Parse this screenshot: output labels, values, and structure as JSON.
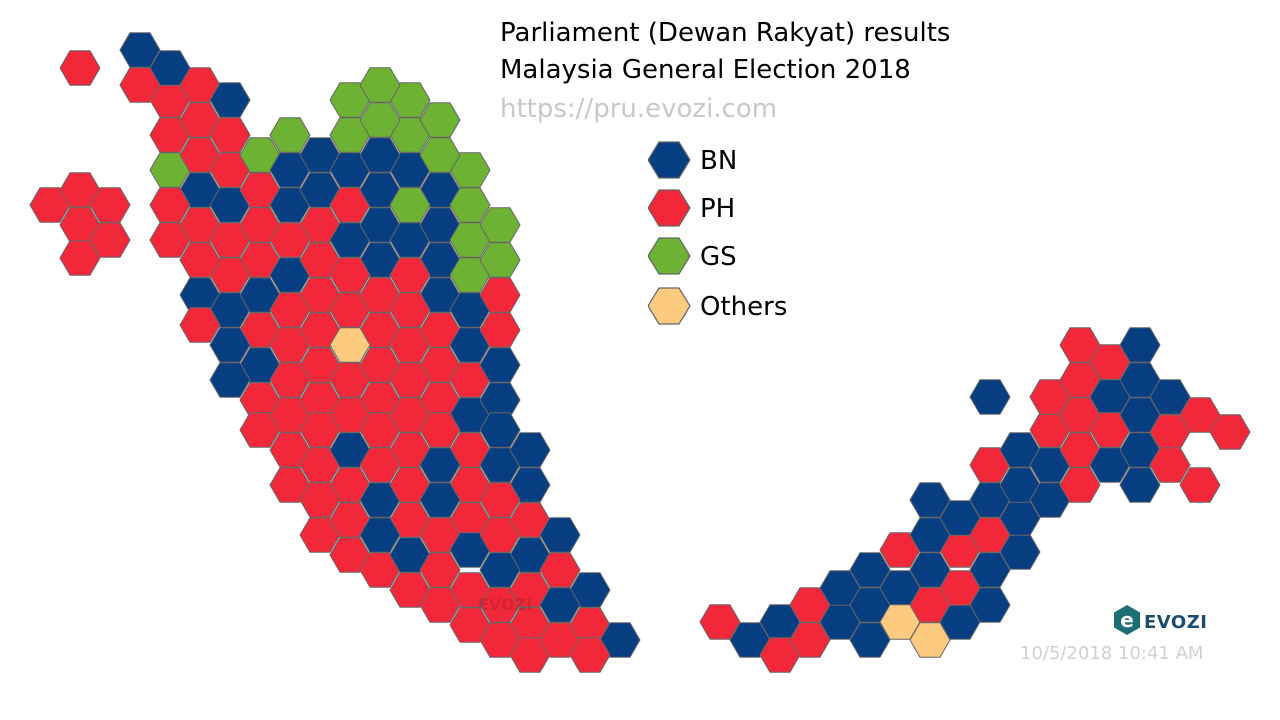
{
  "title_line1": "Parliament (Dewan Rakyat) results",
  "title_line2": "Malaysia General Election 2018",
  "url": "https://pru.evozi.com",
  "legend": [
    {
      "label": "BN",
      "color": "#073e82"
    },
    {
      "label": "PH",
      "color": "#f2283a"
    },
    {
      "label": "GS",
      "color": "#6db233"
    },
    {
      "label": "Others",
      "color": "#fdcb7f"
    }
  ],
  "logo_text": "EVOZI",
  "timestamp": "10/5/2018 10:41 AM",
  "colors": {
    "BN": "#073e82",
    "PH": "#f2283a",
    "GS": "#6db233",
    "OT": "#fdcb7f",
    "stroke": "#666666"
  }
}
